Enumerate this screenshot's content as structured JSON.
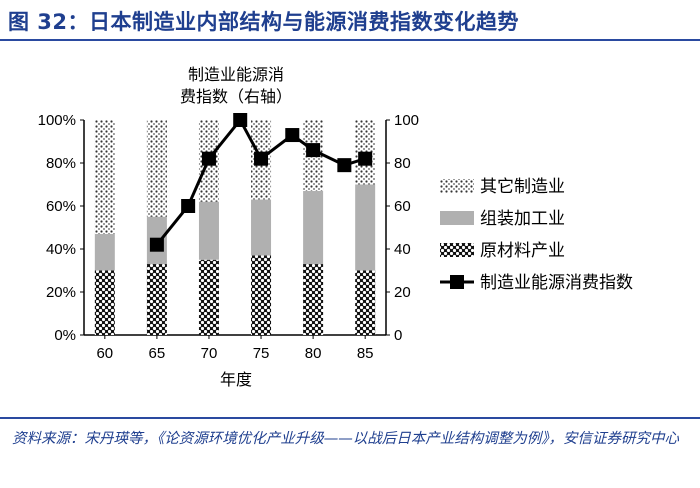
{
  "figure": {
    "title": "图 32：日本制造业内部结构与能源消费指数变化趋势",
    "source": "资料来源：宋丹瑛等，《论资源环境优化产业升级——以战后日本产业结构调整为例》，安信证券研究中心"
  },
  "chart_data": {
    "type": "bar",
    "stacked": true,
    "annotation": "制造业能源消费指数（右轴）",
    "xlabel": "年度",
    "categories": [
      "60",
      "65",
      "70",
      "75",
      "80",
      "85"
    ],
    "left_axis": {
      "ticks": [
        "0%",
        "20%",
        "40%",
        "60%",
        "80%",
        "100%"
      ],
      "range": [
        0,
        100
      ]
    },
    "right_axis": {
      "ticks": [
        "0",
        "20",
        "40",
        "60",
        "80",
        "100"
      ],
      "range": [
        0,
        100
      ]
    },
    "series": [
      {
        "name": "原材料产业",
        "values": [
          30,
          33,
          35,
          37,
          33,
          30
        ],
        "pattern": "dots-dark"
      },
      {
        "name": "组装加工业",
        "values": [
          17,
          22,
          27,
          26,
          34,
          40
        ],
        "pattern": "solid-gray"
      },
      {
        "name": "其它制造业",
        "values": [
          53,
          45,
          38,
          37,
          33,
          30
        ],
        "pattern": "dots-light"
      }
    ],
    "line": {
      "name": "制造业能源消费指数",
      "axis": "right",
      "x": [
        65,
        68,
        70,
        73,
        75,
        78,
        80,
        83,
        85
      ],
      "y": [
        42,
        60,
        82,
        100,
        82,
        93,
        86,
        79,
        82
      ]
    },
    "legend_position": "right",
    "colors": {
      "line": "#000000",
      "gray": "#b0b0b0",
      "title_blue": "#1f3f8f"
    }
  }
}
